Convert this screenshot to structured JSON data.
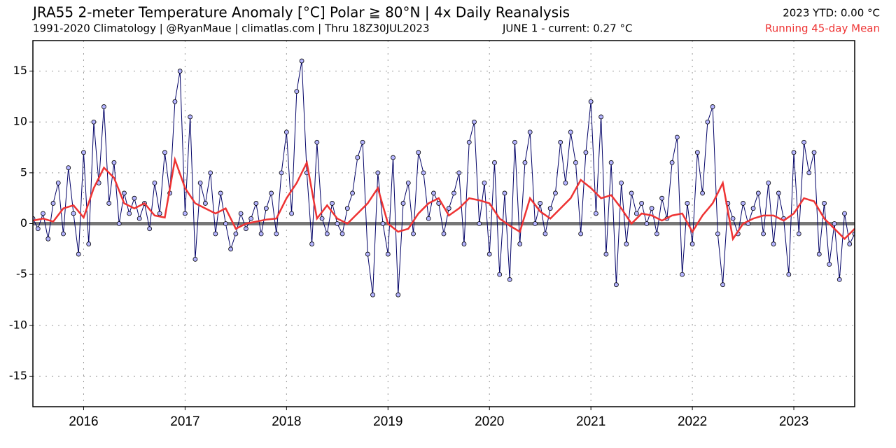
{
  "chart_data": {
    "type": "line",
    "title": "JRA55 2-meter Temperature Anomaly [°C] Polar ≧ 80°N | 4x Daily Reanalysis",
    "subtitle": "1991-2020 Climatology | @RyanMaue | climatlas.com | Thru 18Z30JUL2023",
    "annotations": [
      "JUNE 1 - current: 0.27 °C",
      "2023 YTD: 0.00 °C"
    ],
    "xlim": [
      2015.5,
      2023.6
    ],
    "xticks": [
      2016,
      2017,
      2018,
      2019,
      2020,
      2021,
      2022,
      2023
    ],
    "ylim": [
      -18,
      18
    ],
    "yticks": [
      -15,
      -10,
      -5,
      0,
      5,
      10,
      15
    ],
    "grid": true,
    "legend": "top-right",
    "series": [
      {
        "color": "#000066",
        "marker": "circle",
        "marker_color": "#b4b4ff",
        "x": [
          2015.5,
          2015.55,
          2015.6,
          2015.65,
          2015.7,
          2015.75,
          2015.8,
          2015.85,
          2015.9,
          2015.95,
          2016,
          2016.05,
          2016.1,
          2016.15,
          2016.2,
          2016.25,
          2016.3,
          2016.35,
          2016.4,
          2016.45,
          2016.5,
          2016.55,
          2016.6,
          2016.65,
          2016.7,
          2016.75,
          2016.8,
          2016.85,
          2016.9,
          2016.95,
          2017,
          2017.05,
          2017.1,
          2017.15,
          2017.2,
          2017.25,
          2017.3,
          2017.35,
          2017.4,
          2017.45,
          2017.5,
          2017.55,
          2017.6,
          2017.65,
          2017.7,
          2017.75,
          2017.8,
          2017.85,
          2017.9,
          2017.95,
          2018,
          2018.05,
          2018.1,
          2018.15,
          2018.2,
          2018.25,
          2018.3,
          2018.35,
          2018.4,
          2018.45,
          2018.5,
          2018.55,
          2018.6,
          2018.65,
          2018.7,
          2018.75,
          2018.8,
          2018.85,
          2018.9,
          2018.95,
          2019,
          2019.05,
          2019.1,
          2019.15,
          2019.2,
          2019.25,
          2019.3,
          2019.35,
          2019.4,
          2019.45,
          2019.5,
          2019.55,
          2019.6,
          2019.65,
          2019.7,
          2019.75,
          2019.8,
          2019.85,
          2019.9,
          2019.95,
          2020,
          2020.05,
          2020.1,
          2020.15,
          2020.2,
          2020.25,
          2020.3,
          2020.35,
          2020.4,
          2020.45,
          2020.5,
          2020.55,
          2020.6,
          2020.65,
          2020.7,
          2020.75,
          2020.8,
          2020.85,
          2020.9,
          2020.95,
          2021,
          2021.05,
          2021.1,
          2021.15,
          2021.2,
          2021.25,
          2021.3,
          2021.35,
          2021.4,
          2021.45,
          2021.5,
          2021.55,
          2021.6,
          2021.65,
          2021.7,
          2021.75,
          2021.8,
          2021.85,
          2021.9,
          2021.95,
          2022,
          2022.05,
          2022.1,
          2022.15,
          2022.2,
          2022.25,
          2022.3,
          2022.35,
          2022.4,
          2022.45,
          2022.5,
          2022.55,
          2022.6,
          2022.65,
          2022.7,
          2022.75,
          2022.8,
          2022.85,
          2022.9,
          2022.95,
          2023,
          2023.05,
          2023.1,
          2023.15,
          2023.2,
          2023.25,
          2023.3,
          2023.35,
          2023.4,
          2023.45,
          2023.5,
          2023.55,
          2023.6
        ],
        "values": [
          0.5,
          -0.5,
          1.0,
          -1.5,
          2.0,
          4.0,
          -1.0,
          5.5,
          1.0,
          -3.0,
          7.0,
          -2.0,
          10.0,
          4.0,
          11.5,
          2.0,
          6.0,
          0.0,
          3.0,
          1.0,
          2.5,
          0.5,
          2.0,
          -0.5,
          4.0,
          1.0,
          7.0,
          3.0,
          12.0,
          15.0,
          1.0,
          10.5,
          -3.5,
          4.0,
          2.0,
          5.0,
          -1.0,
          3.0,
          0.0,
          -2.5,
          -1.0,
          1.0,
          -0.5,
          0.5,
          2.0,
          -1.0,
          1.5,
          3.0,
          -1.0,
          5.0,
          9.0,
          1.0,
          13.0,
          16.0,
          5.0,
          -2.0,
          8.0,
          0.5,
          -1.0,
          2.0,
          0.0,
          -1.0,
          1.5,
          3.0,
          6.5,
          8.0,
          -3.0,
          -7.0,
          5.0,
          0.0,
          -3.0,
          6.5,
          -7.0,
          2.0,
          4.0,
          -1.0,
          7.0,
          5.0,
          0.5,
          3.0,
          2.0,
          -1.0,
          1.5,
          3.0,
          5.0,
          -2.0,
          8.0,
          10.0,
          0.0,
          4.0,
          -3.0,
          6.0,
          -5.0,
          3.0,
          -5.5,
          8.0,
          -2.0,
          6.0,
          9.0,
          0.0,
          2.0,
          -1.0,
          1.5,
          3.0,
          8.0,
          4.0,
          9.0,
          6.0,
          -1.0,
          7.0,
          12.0,
          1.0,
          10.5,
          -3.0,
          6.0,
          -6.0,
          4.0,
          -2.0,
          3.0,
          1.0,
          2.0,
          0.0,
          1.5,
          -1.0,
          2.5,
          0.5,
          6.0,
          8.5,
          -5.0,
          2.0,
          -2.0,
          7.0,
          3.0,
          10.0,
          11.5,
          -1.0,
          -6.0,
          2.0,
          0.5,
          -1.0,
          2.0,
          0.0,
          1.5,
          3.0,
          -1.0,
          4.0,
          -2.0,
          3.0,
          0.5,
          -5.0,
          7.0,
          -1.0,
          8.0,
          5.0,
          7.0,
          -3.0,
          2.0,
          -4.0,
          0.0,
          -5.5,
          1.0,
          -2.0,
          -1.0
        ]
      },
      {
        "name": "Running 45-day Mean",
        "color": "#ee3333",
        "x": [
          2015.5,
          2015.6,
          2015.7,
          2015.8,
          2015.9,
          2016,
          2016.1,
          2016.2,
          2016.3,
          2016.4,
          2016.5,
          2016.6,
          2016.7,
          2016.8,
          2016.9,
          2017,
          2017.1,
          2017.2,
          2017.3,
          2017.4,
          2017.5,
          2017.6,
          2017.7,
          2017.8,
          2017.9,
          2018,
          2018.1,
          2018.2,
          2018.3,
          2018.4,
          2018.5,
          2018.6,
          2018.7,
          2018.8,
          2018.9,
          2019,
          2019.1,
          2019.2,
          2019.3,
          2019.4,
          2019.5,
          2019.6,
          2019.7,
          2019.8,
          2019.9,
          2020,
          2020.1,
          2020.2,
          2020.3,
          2020.4,
          2020.5,
          2020.6,
          2020.7,
          2020.8,
          2020.9,
          2021,
          2021.1,
          2021.2,
          2021.3,
          2021.4,
          2021.5,
          2021.6,
          2021.7,
          2021.8,
          2021.9,
          2022,
          2022.1,
          2022.2,
          2022.3,
          2022.4,
          2022.5,
          2022.6,
          2022.7,
          2022.8,
          2022.9,
          2023,
          2023.1,
          2023.2,
          2023.3,
          2023.4,
          2023.5,
          2023.6
        ],
        "values": [
          0.3,
          0.5,
          0.2,
          1.5,
          1.8,
          0.6,
          3.5,
          5.5,
          4.5,
          2.0,
          1.5,
          2.0,
          0.8,
          0.6,
          6.3,
          3.5,
          2.0,
          1.5,
          1.0,
          1.5,
          -0.5,
          0.0,
          0.2,
          0.4,
          0.5,
          2.5,
          4.0,
          6.0,
          0.5,
          1.8,
          0.5,
          0.0,
          1.0,
          2.0,
          3.5,
          0.0,
          -0.8,
          -0.5,
          1.0,
          2.0,
          2.5,
          0.8,
          1.5,
          2.5,
          2.3,
          2.0,
          0.5,
          -0.2,
          -0.8,
          2.5,
          1.2,
          0.5,
          1.5,
          2.5,
          4.3,
          3.5,
          2.5,
          2.8,
          1.5,
          0.0,
          1.0,
          0.8,
          0.3,
          0.8,
          1.0,
          -0.8,
          0.8,
          2.0,
          4.0,
          -1.5,
          0.0,
          0.5,
          0.8,
          0.8,
          0.3,
          1.0,
          2.5,
          2.2,
          0.5,
          -0.5,
          -1.5,
          -0.5
        ]
      }
    ]
  }
}
